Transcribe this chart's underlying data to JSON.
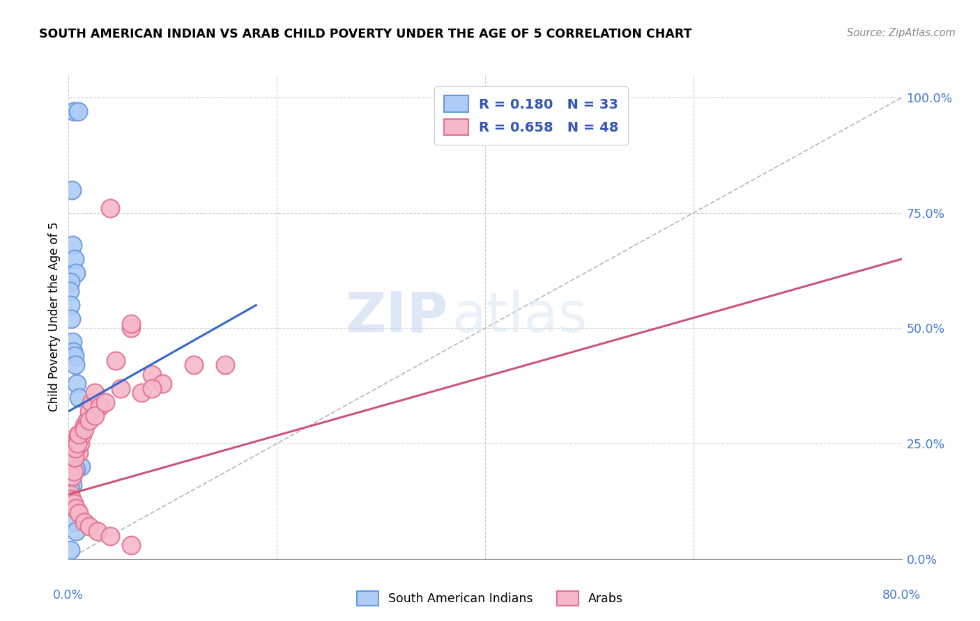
{
  "title": "SOUTH AMERICAN INDIAN VS ARAB CHILD POVERTY UNDER THE AGE OF 5 CORRELATION CHART",
  "source": "Source: ZipAtlas.com",
  "ylabel": "Child Poverty Under the Age of 5",
  "ytick_vals": [
    0.0,
    25.0,
    50.0,
    75.0,
    100.0
  ],
  "xlim": [
    0.0,
    80.0
  ],
  "ylim": [
    0.0,
    105.0
  ],
  "blue_label": "South American Indians",
  "pink_label": "Arabs",
  "blue_color": "#aeccf5",
  "blue_edge": "#6699dd",
  "pink_color": "#f5b8c8",
  "pink_edge": "#e07090",
  "blue_line_color": "#3366cc",
  "pink_line_color": "#cc5577",
  "diagonal_color": "#bbbbbb",
  "watermark_zip": "ZIP",
  "watermark_atlas": "atlas",
  "blue_line": {
    "x0": 0.0,
    "x1": 18.0,
    "y0": 32.0,
    "y1": 55.0
  },
  "pink_line": {
    "x0": 0.0,
    "x1": 80.0,
    "y0": 14.0,
    "y1": 65.0
  },
  "diag_line": {
    "x0": 0.0,
    "x1": 80.0,
    "y0": 0.0,
    "y1": 100.0
  },
  "blue_scatter_x": [
    0.5,
    0.9,
    0.3,
    0.4,
    0.6,
    0.7,
    0.2,
    0.1,
    0.15,
    0.25,
    0.35,
    0.45,
    0.55,
    0.65,
    0.8,
    1.0,
    1.2,
    0.3,
    0.4,
    0.5,
    0.2,
    0.3,
    0.4,
    0.2,
    0.1,
    0.15,
    0.1,
    0.6,
    0.7,
    0.2,
    0.15,
    0.4,
    0.7
  ],
  "blue_scatter_y": [
    97.0,
    97.0,
    80.0,
    68.0,
    65.0,
    62.0,
    60.0,
    58.0,
    55.0,
    52.0,
    47.0,
    45.0,
    44.0,
    42.0,
    38.0,
    35.0,
    20.0,
    21.0,
    22.0,
    20.0,
    19.0,
    17.0,
    16.0,
    15.0,
    14.0,
    13.0,
    12.5,
    8.0,
    6.0,
    2.0,
    21.0,
    20.5,
    19.5
  ],
  "pink_scatter_x": [
    0.2,
    0.3,
    0.4,
    0.5,
    0.6,
    0.7,
    0.8,
    0.9,
    1.0,
    1.1,
    1.3,
    1.5,
    1.8,
    2.0,
    2.2,
    2.5,
    3.0,
    4.0,
    5.0,
    6.0,
    7.0,
    8.0,
    9.0,
    12.0,
    0.25,
    0.35,
    0.55,
    0.65,
    0.85,
    1.0,
    1.5,
    2.0,
    2.5,
    3.5,
    4.5,
    6.0,
    8.0,
    0.2,
    0.3,
    0.5,
    0.7,
    1.0,
    1.5,
    2.0,
    2.8,
    4.0,
    6.0,
    15.0
  ],
  "pink_scatter_y": [
    21.0,
    20.0,
    18.0,
    19.0,
    22.0,
    24.0,
    26.0,
    27.0,
    23.0,
    25.0,
    27.0,
    29.0,
    30.0,
    32.0,
    34.0,
    36.0,
    33.0,
    76.0,
    37.0,
    50.0,
    36.0,
    40.0,
    38.0,
    42.0,
    24.0,
    23.0,
    22.0,
    24.0,
    25.0,
    27.0,
    28.0,
    30.0,
    31.0,
    34.0,
    43.0,
    51.0,
    37.0,
    14.0,
    13.0,
    12.0,
    11.0,
    10.0,
    8.0,
    7.0,
    6.0,
    5.0,
    3.0,
    42.0
  ]
}
